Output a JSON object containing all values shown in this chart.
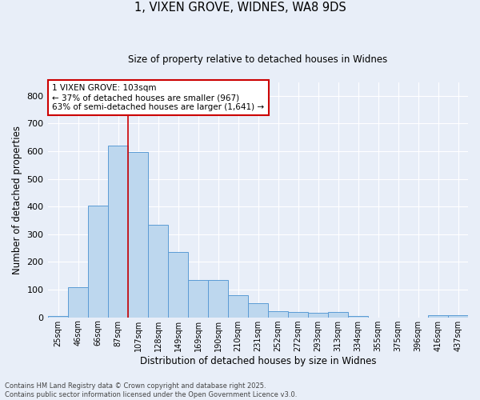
{
  "title_line1": "1, VIXEN GROVE, WIDNES, WA8 9DS",
  "title_line2": "Size of property relative to detached houses in Widnes",
  "xlabel": "Distribution of detached houses by size in Widnes",
  "ylabel": "Number of detached properties",
  "categories": [
    "25sqm",
    "46sqm",
    "66sqm",
    "87sqm",
    "107sqm",
    "128sqm",
    "149sqm",
    "169sqm",
    "190sqm",
    "210sqm",
    "231sqm",
    "252sqm",
    "272sqm",
    "293sqm",
    "313sqm",
    "334sqm",
    "355sqm",
    "375sqm",
    "396sqm",
    "416sqm",
    "437sqm"
  ],
  "values": [
    6,
    110,
    403,
    620,
    597,
    334,
    235,
    136,
    136,
    80,
    52,
    22,
    20,
    17,
    18,
    6,
    0,
    0,
    0,
    7,
    8
  ],
  "bar_color": "#bdd7ee",
  "bar_edge_color": "#5b9bd5",
  "vline_color": "#cc0000",
  "annotation_text": "1 VIXEN GROVE: 103sqm\n← 37% of detached houses are smaller (967)\n63% of semi-detached houses are larger (1,641) →",
  "annotation_box_color": "#ffffff",
  "annotation_box_edge": "#cc0000",
  "ylim": [
    0,
    850
  ],
  "yticks": [
    0,
    100,
    200,
    300,
    400,
    500,
    600,
    700,
    800
  ],
  "background_color": "#e8eef8",
  "grid_color": "#ffffff",
  "footer_line1": "Contains HM Land Registry data © Crown copyright and database right 2025.",
  "footer_line2": "Contains public sector information licensed under the Open Government Licence v3.0."
}
